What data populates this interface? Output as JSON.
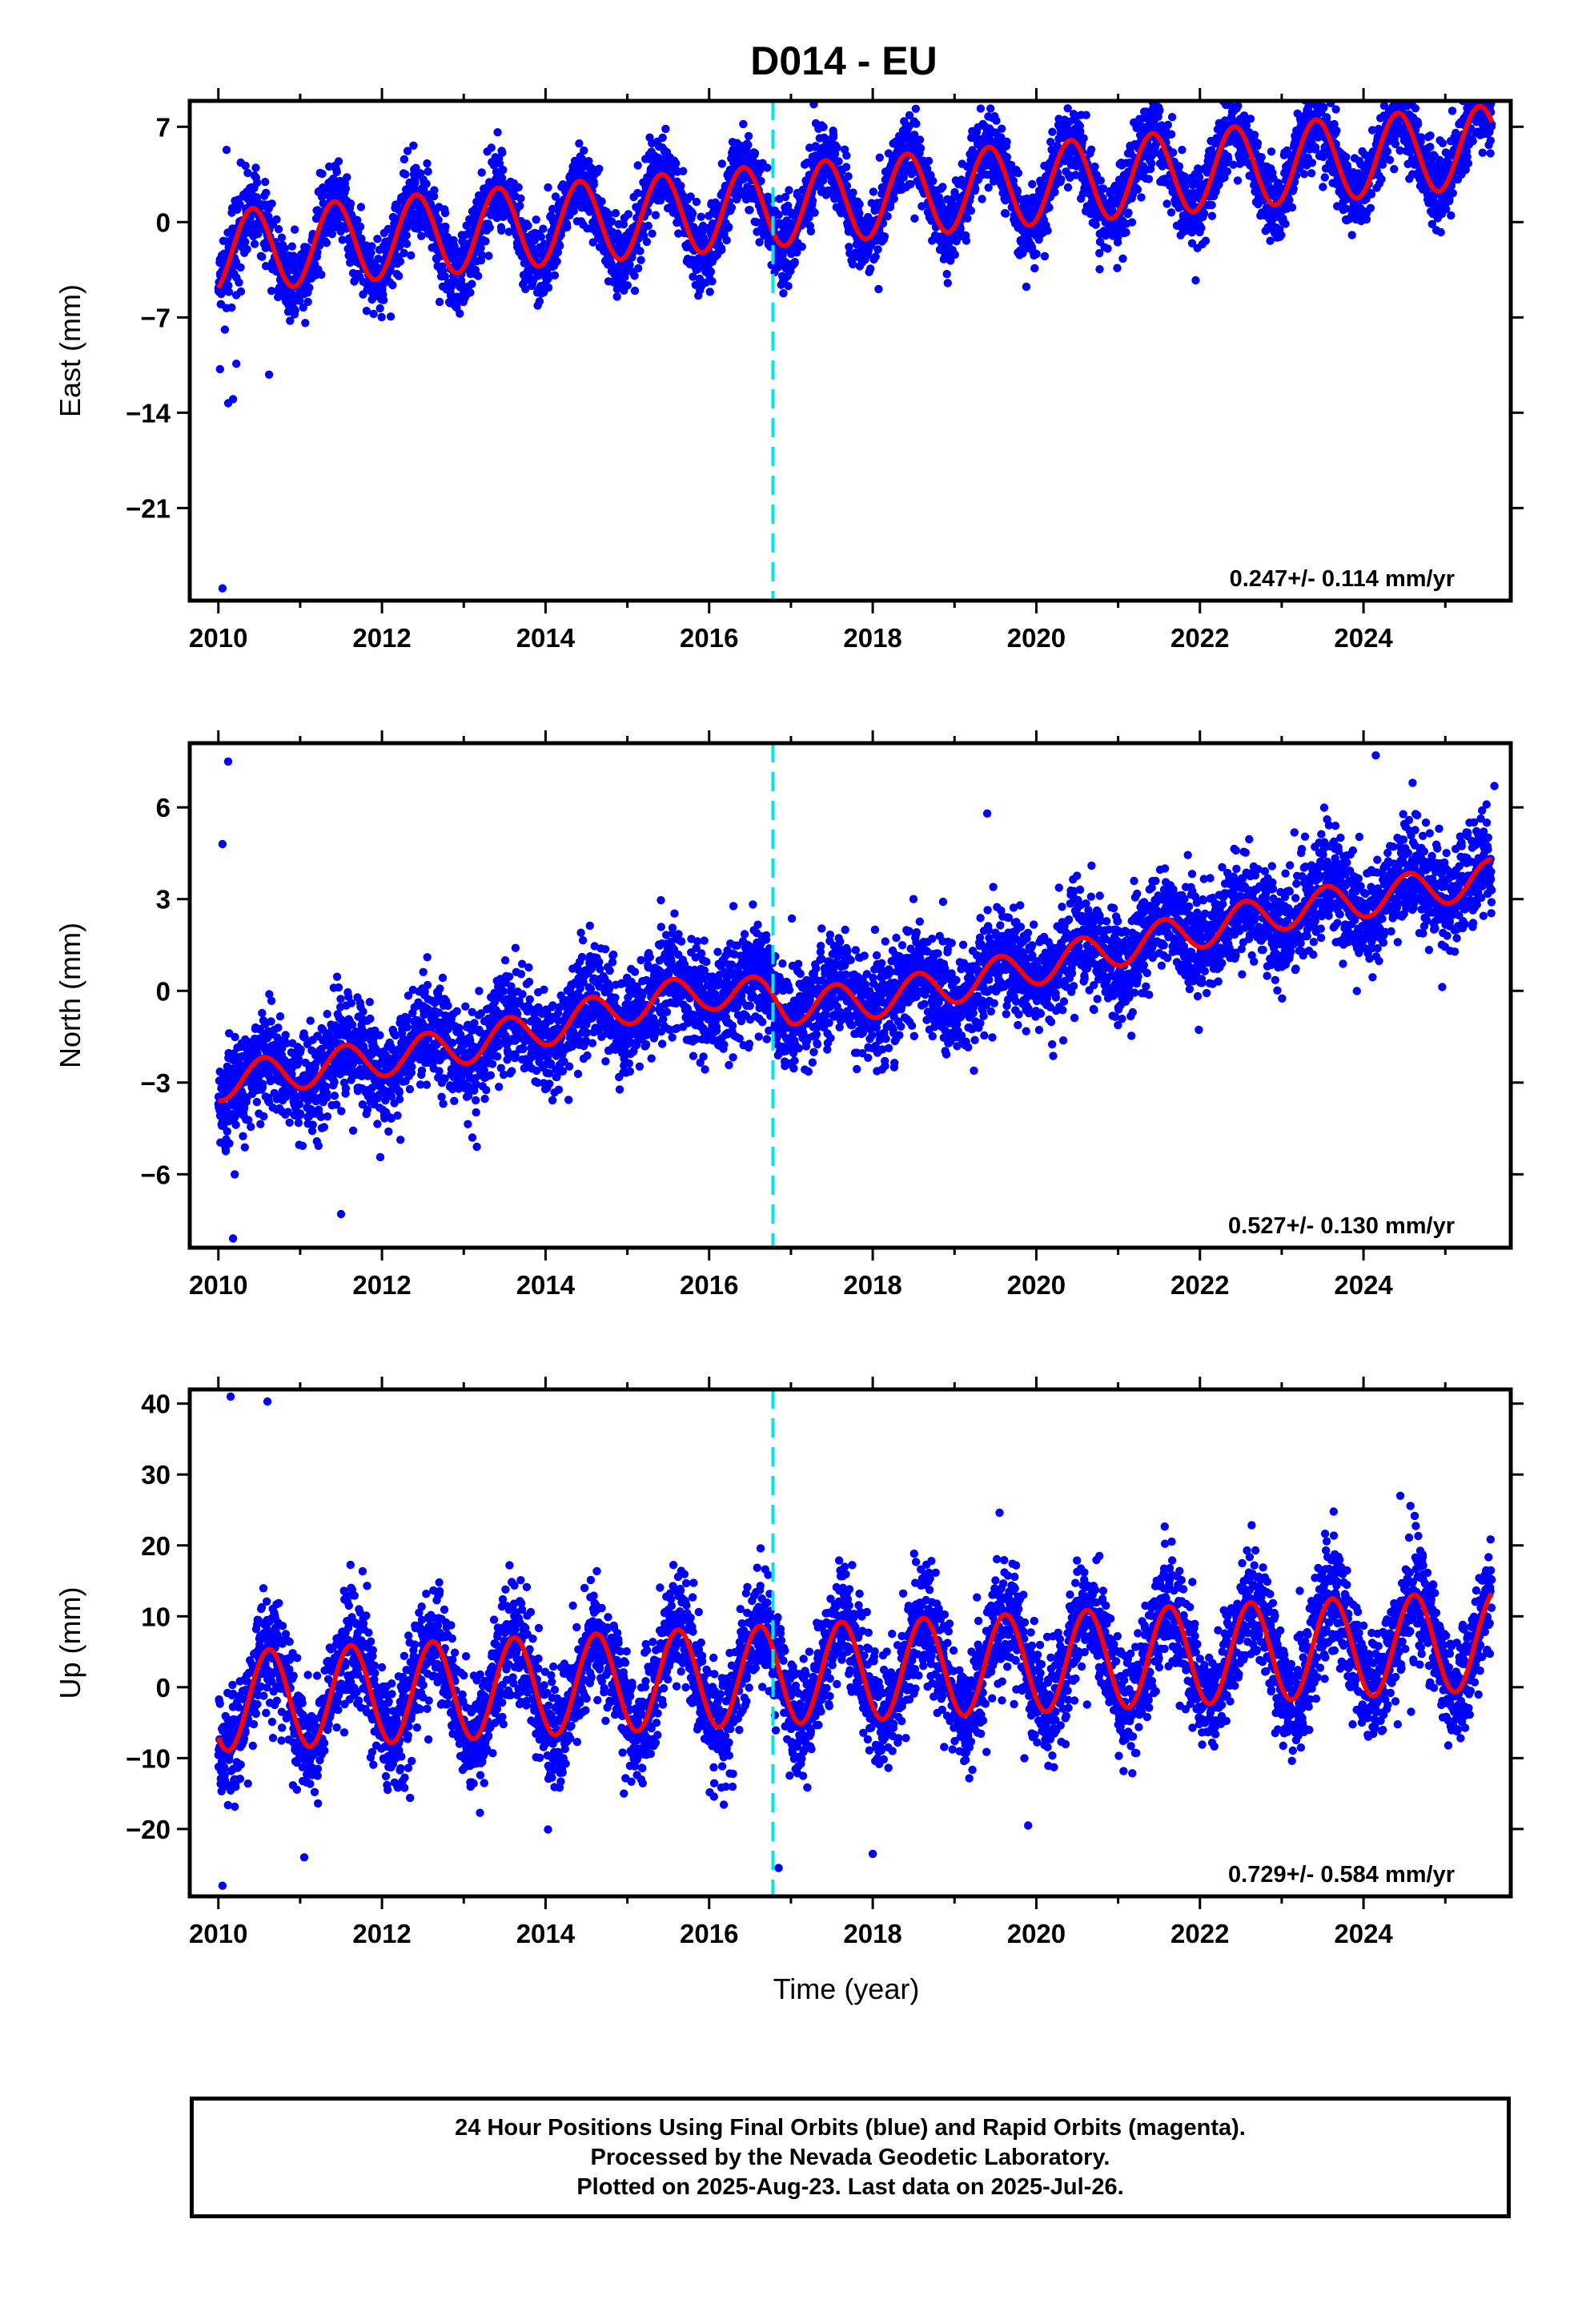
{
  "title": "D014 - EU",
  "xlabel": "Time (year)",
  "caption": {
    "line1": "24 Hour Positions Using Final Orbits (blue) and Rapid Orbits (magenta).",
    "line2": "Processed by the Nevada Geodetic Laboratory.",
    "line3": "Plotted on 2025-Aug-23. Last data on 2025-Jul-26."
  },
  "colors": {
    "points": "#0000ff",
    "model": "#ff0000",
    "step": "#00e5e5",
    "axis": "#000000"
  },
  "chart_data": [
    {
      "type": "scatter",
      "name": "east",
      "ylabel": "East (mm)",
      "xlim": [
        2009.65,
        2025.8
      ],
      "ylim": [
        -27.8,
        8.9
      ],
      "xticks": [
        2010,
        2012,
        2014,
        2016,
        2018,
        2020,
        2022,
        2024
      ],
      "yticks": [
        -21,
        -14,
        -7,
        0,
        7
      ],
      "ytick_labels": [
        "−21",
        "−14",
        "−7",
        "0",
        "7"
      ],
      "rate": "0.247+/- 0.114 mm/yr",
      "step_at": 2016.78,
      "start": 2010.0,
      "end": 2025.57,
      "model": {
        "offset": -2.2,
        "trend": 0.5,
        "amplitude": 3.0,
        "phase_peak": 0.42
      },
      "scatter_sd": 1.4,
      "outliers": [
        [
          2010.02,
          -10.8
        ],
        [
          2010.05,
          -26.9
        ],
        [
          2010.12,
          -13.3
        ],
        [
          2010.18,
          -13.0
        ],
        [
          2010.22,
          -10.4
        ],
        [
          2010.1,
          5.3
        ],
        [
          2010.62,
          -11.2
        ],
        [
          2010.08,
          -7.9
        ]
      ]
    },
    {
      "type": "scatter",
      "name": "north",
      "ylabel": "North (mm)",
      "xlim": [
        2009.65,
        2025.8
      ],
      "ylim": [
        -8.4,
        8.1
      ],
      "xticks": [
        2010,
        2012,
        2014,
        2016,
        2018,
        2020,
        2022,
        2024
      ],
      "yticks": [
        -6,
        -3,
        0,
        3,
        6
      ],
      "ytick_labels": [
        "−6",
        "−3",
        "0",
        "3",
        "6"
      ],
      "rate": "0.527+/- 0.130 mm/yr",
      "step_at": 2016.78,
      "start": 2010.0,
      "end": 2025.57,
      "model": {
        "amplitude": 0.6,
        "phase_peak": 0.55,
        "knots": [
          [
            2010.0,
            -3.0
          ],
          [
            2011.0,
            -2.6
          ],
          [
            2012.0,
            -2.2
          ],
          [
            2013.0,
            -1.8
          ],
          [
            2014.0,
            -1.2
          ],
          [
            2015.0,
            -0.5
          ],
          [
            2016.0,
            0.0
          ],
          [
            2016.78,
            -0.2
          ],
          [
            2017.0,
            -0.5
          ],
          [
            2018.0,
            -0.3
          ],
          [
            2019.0,
            0.2
          ],
          [
            2020.0,
            0.8
          ],
          [
            2021.0,
            1.4
          ],
          [
            2022.0,
            2.0
          ],
          [
            2023.0,
            2.6
          ],
          [
            2024.0,
            3.0
          ],
          [
            2025.57,
            3.7
          ]
        ]
      },
      "scatter_sd": 0.85,
      "outliers": [
        [
          2010.12,
          7.5
        ],
        [
          2010.05,
          4.8
        ],
        [
          2010.18,
          -8.1
        ],
        [
          2010.2,
          -6.0
        ],
        [
          2011.5,
          -7.3
        ],
        [
          2019.4,
          5.8
        ],
        [
          2024.15,
          7.7
        ],
        [
          2024.6,
          6.8
        ],
        [
          2025.6,
          6.7
        ]
      ]
    },
    {
      "type": "scatter",
      "name": "up",
      "ylabel": "Up (mm)",
      "xlim": [
        2009.65,
        2025.8
      ],
      "ylim": [
        -29.5,
        42.0
      ],
      "xticks": [
        2010,
        2012,
        2014,
        2016,
        2018,
        2020,
        2022,
        2024
      ],
      "yticks": [
        -20,
        -10,
        0,
        10,
        20,
        30,
        40
      ],
      "ytick_labels": [
        "−20",
        "−10",
        "0",
        "10",
        "20",
        "30",
        "40"
      ],
      "rate": "0.729+/- 0.584 mm/yr",
      "step_at": 2016.78,
      "start": 2010.0,
      "end": 2025.57,
      "model": {
        "offset": -2.0,
        "trend": 0.55,
        "amplitude": 7.0,
        "phase_peak": 0.62
      },
      "scatter_sd": 4.0,
      "outliers": [
        [
          2010.15,
          41.0
        ],
        [
          2010.05,
          -28.0
        ],
        [
          2016.85,
          -25.5
        ],
        [
          2019.55,
          24.6
        ],
        [
          2024.45,
          27.0
        ],
        [
          2018.0,
          -23.5
        ],
        [
          2019.9,
          -19.5
        ],
        [
          2011.05,
          -24.0
        ],
        [
          2010.6,
          40.3
        ]
      ]
    }
  ]
}
